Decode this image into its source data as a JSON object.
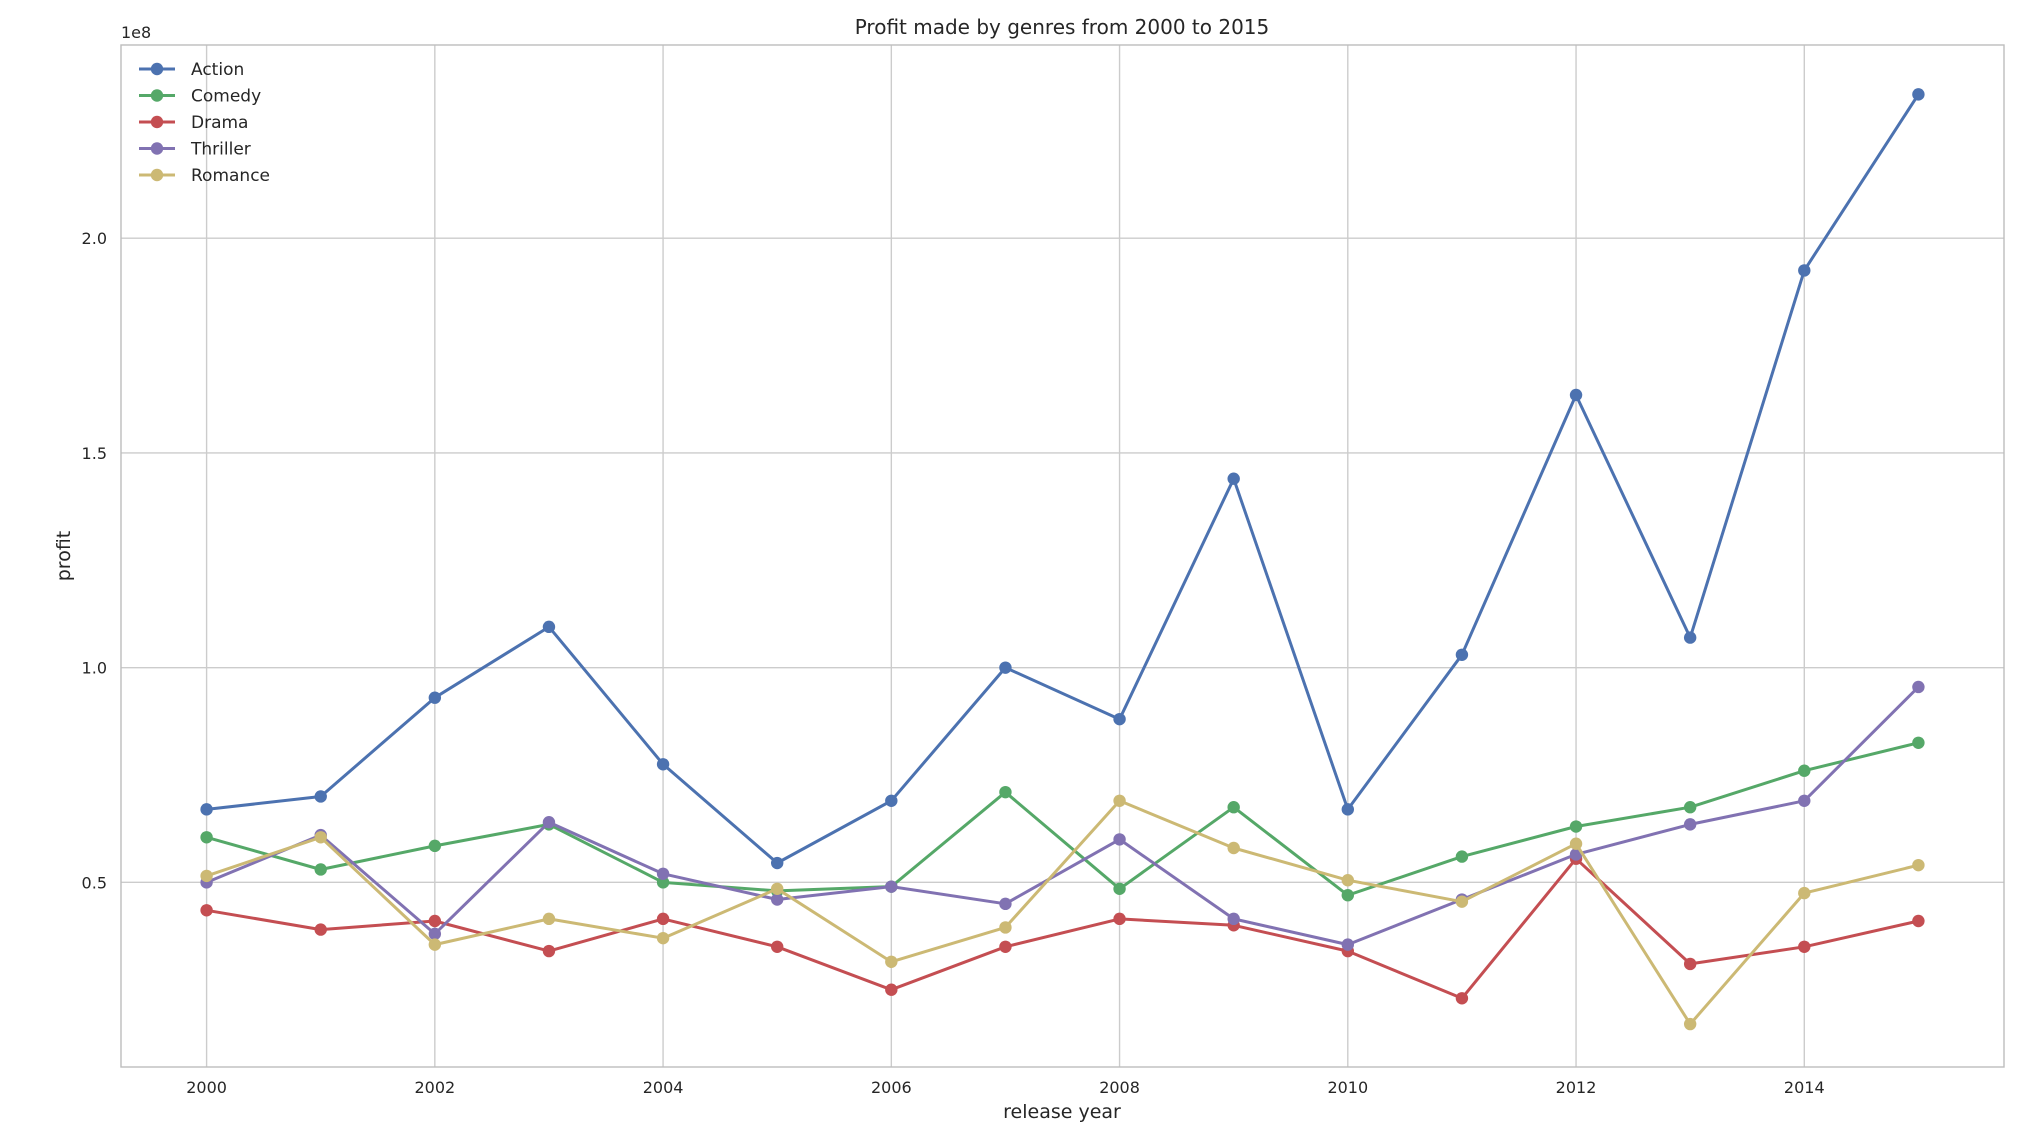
{
  "chart_data": {
    "type": "line",
    "title": "Profit made by genres from 2000 to 2015",
    "xlabel": "release year",
    "ylabel": "profit",
    "offset_text": "1e8",
    "x": [
      2000,
      2001,
      2002,
      2003,
      2004,
      2005,
      2006,
      2007,
      2008,
      2009,
      2010,
      2011,
      2012,
      2013,
      2014,
      2015
    ],
    "xlim": [
      1999.25,
      2015.75
    ],
    "ylim": [
      0.07,
      2.45
    ],
    "x_ticks": [
      2000,
      2002,
      2004,
      2006,
      2008,
      2010,
      2012,
      2014
    ],
    "x_tick_labels": [
      "2000",
      "2002",
      "2004",
      "2006",
      "2008",
      "2010",
      "2012",
      "2014"
    ],
    "y_ticks": [
      0.5,
      1.0,
      1.5,
      2.0
    ],
    "y_tick_labels": [
      "0.5",
      "1.0",
      "1.5",
      "2.0"
    ],
    "grid": true,
    "legend_position": "top-left",
    "series": [
      {
        "name": "Action",
        "color": "#4c72b0",
        "values": [
          0.67,
          0.7,
          0.93,
          1.095,
          0.775,
          0.545,
          0.69,
          1.0,
          0.88,
          1.44,
          0.67,
          1.03,
          1.635,
          1.07,
          1.925,
          2.335
        ]
      },
      {
        "name": "Comedy",
        "color": "#55a868",
        "values": [
          0.605,
          0.53,
          0.585,
          0.635,
          0.5,
          0.48,
          0.49,
          0.71,
          0.485,
          0.675,
          0.47,
          0.56,
          0.63,
          0.675,
          0.76,
          0.825
        ]
      },
      {
        "name": "Drama",
        "color": "#c44e52",
        "values": [
          0.435,
          0.39,
          0.41,
          0.34,
          0.415,
          0.35,
          0.25,
          0.35,
          0.415,
          0.4,
          0.34,
          0.23,
          0.555,
          0.31,
          0.35,
          0.41
        ]
      },
      {
        "name": "Thriller",
        "color": "#8172b2",
        "values": [
          0.5,
          0.61,
          0.38,
          0.64,
          0.52,
          0.46,
          0.49,
          0.45,
          0.6,
          0.415,
          0.355,
          0.46,
          0.565,
          0.635,
          0.69,
          0.955
        ]
      },
      {
        "name": "Romance",
        "color": "#ccb974",
        "values": [
          0.515,
          0.605,
          0.355,
          0.415,
          0.37,
          0.485,
          0.315,
          0.395,
          0.69,
          0.58,
          0.505,
          0.455,
          0.59,
          0.17,
          0.475,
          0.54
        ]
      }
    ]
  }
}
